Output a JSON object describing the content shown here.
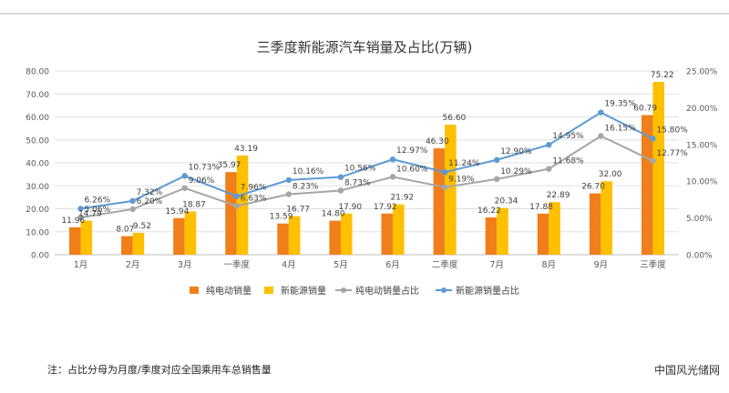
{
  "chart_data": {
    "type": "bar",
    "title": "三季度新能源汽车销量及占比(万辆)",
    "categories": [
      "1月",
      "2月",
      "3月",
      "一季度",
      "4月",
      "5月",
      "6月",
      "二季度",
      "7月",
      "8月",
      "9月",
      "三季度"
    ],
    "series": [
      {
        "name": "纯电动销量",
        "type": "bar",
        "axis": "left",
        "color": "#f07f1b",
        "values": [
          11.96,
          8.07,
          15.94,
          35.97,
          13.59,
          14.8,
          17.92,
          46.3,
          16.22,
          17.88,
          26.7,
          60.79
        ],
        "labels": [
          "11.96",
          "8.07",
          "15.94",
          "35.97",
          "13.59",
          "14.80",
          "17.92",
          "46.30",
          "16.22",
          "17.88",
          "26.70",
          "60.79"
        ]
      },
      {
        "name": "新能源销量",
        "type": "bar",
        "axis": "left",
        "color": "#ffc000",
        "values": [
          14.79,
          9.52,
          18.87,
          43.19,
          16.77,
          17.9,
          21.92,
          56.6,
          20.34,
          22.89,
          32.0,
          75.22
        ],
        "labels": [
          "14.79",
          "9.52",
          "18.87",
          "43.19",
          "16.77",
          "17.90",
          "21.92",
          "56.60",
          "20.34",
          "22.89",
          "32.00",
          "75.22"
        ]
      },
      {
        "name": "纯电动销量占比",
        "type": "line",
        "axis": "right",
        "color": "#a6a6a6",
        "values": [
          5.06,
          6.2,
          9.06,
          6.63,
          8.23,
          8.73,
          10.6,
          9.19,
          10.29,
          11.68,
          16.15,
          12.77
        ],
        "labels": [
          "5.06%",
          "6.20%",
          "9.06%",
          "6.63%",
          "8.23%",
          "8.73%",
          "10.60%",
          "9.19%",
          "10.29%",
          "11.68%",
          "16.15%",
          "12.77%"
        ]
      },
      {
        "name": "新能源销量占比",
        "type": "line",
        "axis": "right",
        "color": "#5b9bd5",
        "values": [
          6.26,
          7.32,
          10.73,
          7.96,
          10.16,
          10.56,
          12.97,
          11.24,
          12.9,
          14.95,
          19.35,
          15.8
        ],
        "labels": [
          "6.26%",
          "7.32%",
          "10.73%",
          "7.96%",
          "10.16%",
          "10.56%",
          "12.97%",
          "11.24%",
          "12.90%",
          "14.95%",
          "19.35%",
          "15.80%"
        ]
      }
    ],
    "y_left": {
      "min": 0,
      "max": 80,
      "step": 10,
      "ticks": [
        "0.00",
        "10.00",
        "20.00",
        "30.00",
        "40.00",
        "50.00",
        "60.00",
        "70.00",
        "80.00"
      ]
    },
    "y_right": {
      "min": 0,
      "max": 25,
      "step": 5,
      "ticks": [
        "0.00%",
        "5.00%",
        "10.00%",
        "15.00%",
        "20.00%",
        "25.00%"
      ]
    },
    "grid": true,
    "legend_position": "bottom"
  },
  "footnote": "注：占比分母为月度/季度对应全国乘用车总销售量",
  "watermark": "中国风光储网"
}
